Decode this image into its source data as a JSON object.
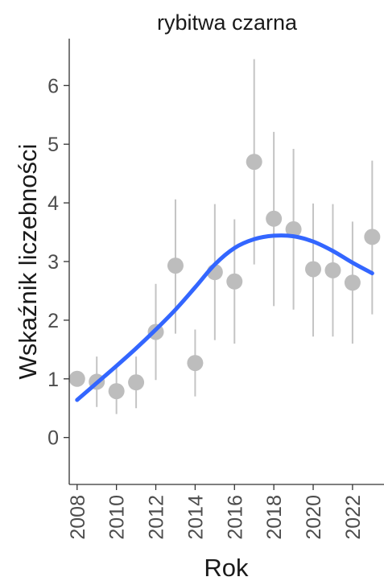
{
  "chart_data": {
    "type": "scatter",
    "title": "rybitwa czarna",
    "xlabel": "Rok",
    "ylabel": "Wskaźnik liczebności",
    "xlim": [
      2007.6,
      2023.6
    ],
    "ylim": [
      -0.8,
      6.8
    ],
    "xticks": [
      "2008",
      "2010",
      "2012",
      "2014",
      "2016",
      "2018",
      "2020",
      "2022"
    ],
    "yticks": [
      "0",
      "1",
      "2",
      "3",
      "4",
      "5",
      "6"
    ],
    "grid": false,
    "colors": {
      "points": "#bdbdbd",
      "errorbars": "#c4c4c4",
      "trend": "#3366ff",
      "axis": "#333333"
    },
    "series": [
      {
        "x": [
          2008,
          2009,
          2010,
          2011,
          2012,
          2013,
          2014,
          2015,
          2016,
          2017,
          2018,
          2019,
          2020,
          2021,
          2022,
          2023
        ],
        "values": [
          1.0,
          0.95,
          0.79,
          0.94,
          1.8,
          2.93,
          1.27,
          2.82,
          2.66,
          4.7,
          3.73,
          3.55,
          2.87,
          2.85,
          2.64,
          3.42
        ],
        "lower": [
          null,
          0.52,
          0.4,
          0.5,
          0.98,
          1.77,
          0.7,
          1.66,
          1.6,
          2.95,
          2.24,
          2.18,
          1.72,
          1.72,
          1.6,
          2.1
        ],
        "upper": [
          null,
          1.38,
          1.22,
          1.38,
          2.62,
          4.06,
          1.84,
          3.98,
          3.72,
          6.45,
          5.21,
          4.92,
          3.99,
          3.98,
          3.68,
          4.72
        ]
      }
    ],
    "trend": {
      "x": [
        2008,
        2009,
        2010,
        2011,
        2012,
        2013,
        2014,
        2015,
        2016,
        2017,
        2018,
        2019,
        2020,
        2021,
        2022,
        2023
      ],
      "y": [
        0.64,
        0.93,
        1.22,
        1.52,
        1.84,
        2.18,
        2.56,
        2.95,
        3.23,
        3.38,
        3.44,
        3.43,
        3.34,
        3.18,
        2.98,
        2.8
      ]
    }
  }
}
